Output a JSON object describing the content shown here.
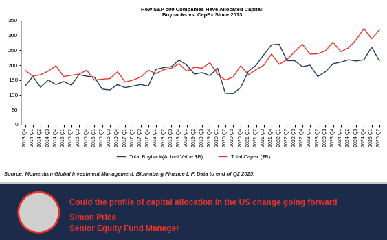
{
  "chart_data": {
    "type": "line",
    "title": "How S&P 500 Companies Have Allocated Capital:\nBuybacks vs. CapEx Since 2013",
    "categories": [
      "2013 Q4",
      "2014 Q1",
      "2014 Q2",
      "2014 Q3",
      "2014 Q4",
      "2015 Q1",
      "2015 Q2",
      "2015 Q3",
      "2015 Q4",
      "2016 Q1",
      "2016 Q2",
      "2016 Q3",
      "2016 Q4",
      "2017 Q1",
      "2017 Q2",
      "2017 Q3",
      "2017 Q4",
      "2018 Q1",
      "2018 Q2",
      "2018 Q3",
      "2018 Q4",
      "2019 Q1",
      "2019 Q2",
      "2019 Q3",
      "2019 Q4",
      "2020 Q1",
      "2020 Q2",
      "2020 Q3",
      "2020 Q4",
      "2021 Q1",
      "2021 Q2",
      "2021 Q3",
      "2021 Q4",
      "2022 Q1",
      "2022 Q2",
      "2022 Q3",
      "2022 Q4",
      "2023 Q1",
      "2023 Q2",
      "2023 Q3",
      "2023 Q4",
      "2024 Q1",
      "2024 Q2",
      "2024 Q3",
      "2024 Q4",
      "2025 Q1",
      "2025 Q2"
    ],
    "series": [
      {
        "name": "Total Buyback(Actual Value $B)",
        "color": "#1f3b63",
        "values": [
          130,
          162,
          126,
          150,
          135,
          145,
          133,
          168,
          163,
          160,
          120,
          117,
          135,
          125,
          130,
          135,
          130,
          186,
          192,
          195,
          217,
          200,
          170,
          175,
          165,
          190,
          106,
          105,
          125,
          180,
          200,
          235,
          268,
          270,
          215,
          215,
          195,
          200,
          162,
          178,
          205,
          210,
          218,
          214,
          218,
          260,
          215
        ]
      },
      {
        "name": "Total Capex ($B)",
        "color": "#e8332a",
        "values": [
          183,
          163,
          168,
          180,
          198,
          162,
          166,
          170,
          183,
          150,
          153,
          155,
          178,
          143,
          150,
          160,
          183,
          172,
          185,
          190,
          205,
          180,
          193,
          190,
          208,
          170,
          150,
          160,
          198,
          168,
          185,
          200,
          237,
          203,
          218,
          245,
          270,
          237,
          238,
          248,
          277,
          245,
          258,
          285,
          323,
          288,
          318
        ]
      }
    ],
    "ylim": [
      0,
      350
    ],
    "yticks": [
      0,
      50,
      100,
      150,
      200,
      250,
      300,
      350
    ],
    "grid": false,
    "legend": "lower center",
    "source": "Source: Momentum Global Investment Management, Bloomberg Finance L.P. Data to end of Q2 2025."
  },
  "banner": {
    "headline": "Could the profile of capital allocation in the US change going forward",
    "name": "Simon Price",
    "role": "Senior Equity Fund Manager"
  }
}
